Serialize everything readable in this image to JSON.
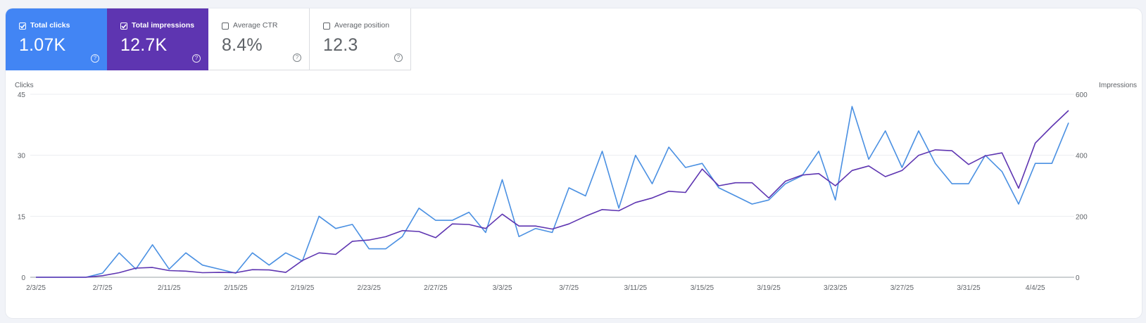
{
  "metrics": [
    {
      "label": "Total clicks",
      "value": "1.07K",
      "selected": true,
      "color": "#4285f4"
    },
    {
      "label": "Total impressions",
      "value": "12.7K",
      "selected": true,
      "color": "#5e35b1"
    },
    {
      "label": "Average CTR",
      "value": "8.4%",
      "selected": false,
      "color": "#ffffff"
    },
    {
      "label": "Average position",
      "value": "12.3",
      "selected": false,
      "color": "#ffffff"
    }
  ],
  "help_glyph": "?",
  "chart_data": {
    "type": "line",
    "left_axis": {
      "label": "Clicks",
      "ticks": [
        0,
        15,
        30,
        45
      ],
      "range": [
        0,
        45
      ]
    },
    "right_axis": {
      "label": "Impressions",
      "ticks": [
        0,
        200,
        400,
        600
      ],
      "range": [
        0,
        600
      ]
    },
    "x_ticks": [
      "2/3/25",
      "2/7/25",
      "2/11/25",
      "2/15/25",
      "2/19/25",
      "2/23/25",
      "2/27/25",
      "3/3/25",
      "3/7/25",
      "3/11/25",
      "3/15/25",
      "3/19/25",
      "3/23/25",
      "3/27/25",
      "3/31/25",
      "4/4/25"
    ],
    "x_start": "2/3/25",
    "x_end": "4/4/25",
    "grid": true,
    "series": [
      {
        "name": "Clicks",
        "axis": "left",
        "color": "#4a90e2",
        "values": [
          0,
          0,
          0,
          0,
          1,
          6,
          2,
          8,
          2,
          6,
          3,
          2,
          1,
          6,
          3,
          6,
          4,
          15,
          12,
          13,
          7,
          7,
          10,
          17,
          14,
          14,
          16,
          11,
          24,
          10,
          12,
          11,
          22,
          20,
          31,
          17,
          30,
          23,
          32,
          27,
          28,
          22,
          20,
          18,
          19,
          23,
          25,
          31,
          19,
          42,
          29,
          36,
          27,
          36,
          28,
          23,
          23,
          30,
          26,
          18,
          28,
          28,
          38
        ]
      },
      {
        "name": "Impressions",
        "axis": "right",
        "color": "#5e35b1",
        "values": [
          0,
          0,
          0,
          0,
          5,
          15,
          30,
          32,
          22,
          20,
          15,
          16,
          15,
          25,
          24,
          16,
          55,
          80,
          75,
          118,
          122,
          133,
          153,
          150,
          130,
          175,
          173,
          160,
          207,
          168,
          168,
          158,
          175,
          200,
          222,
          218,
          245,
          260,
          282,
          278,
          355,
          300,
          310,
          310,
          260,
          315,
          335,
          340,
          300,
          350,
          365,
          330,
          350,
          400,
          418,
          415,
          370,
          398,
          408,
          292,
          440,
          495,
          547
        ]
      }
    ]
  }
}
